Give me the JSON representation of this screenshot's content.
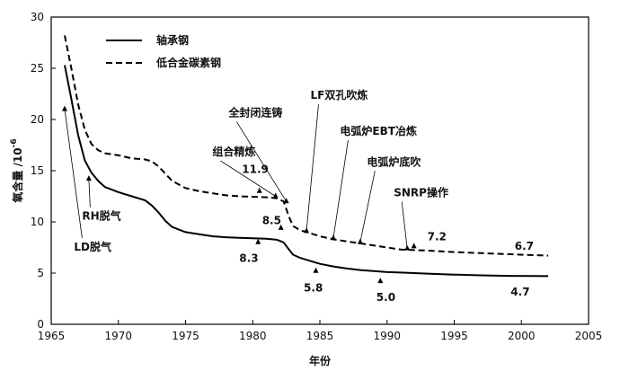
{
  "chart_data": {
    "type": "line",
    "xlabel": "年份",
    "ylabel": "氧含量 /10",
    "ylabel_exponent": "-6",
    "xlim": [
      1965,
      2005
    ],
    "ylim": [
      0,
      30
    ],
    "xticks": [
      "1965",
      "1970",
      "1975",
      "1980",
      "1985",
      "1990",
      "1995",
      "2000",
      "2005"
    ],
    "yticks": [
      "0",
      "5",
      "10",
      "15",
      "20",
      "25",
      "30"
    ],
    "legend_position": "top-left",
    "series": [
      {
        "name": "轴承钢",
        "style": "solid",
        "color": "#000000",
        "points": [
          [
            1966,
            25.3
          ],
          [
            1966.5,
            22
          ],
          [
            1967,
            18.5
          ],
          [
            1967.5,
            16
          ],
          [
            1968,
            14.8
          ],
          [
            1968.5,
            14
          ],
          [
            1969,
            13.4
          ],
          [
            1970,
            12.9
          ],
          [
            1971,
            12.5
          ],
          [
            1972,
            12.1
          ],
          [
            1972.5,
            11.6
          ],
          [
            1973,
            10.9
          ],
          [
            1973.5,
            10.1
          ],
          [
            1974,
            9.5
          ],
          [
            1975,
            9.0
          ],
          [
            1976,
            8.8
          ],
          [
            1977,
            8.6
          ],
          [
            1978,
            8.5
          ],
          [
            1979,
            8.45
          ],
          [
            1980,
            8.4
          ],
          [
            1981,
            8.35
          ],
          [
            1981.8,
            8.25
          ],
          [
            1982.3,
            8.0
          ],
          [
            1982.7,
            7.3
          ],
          [
            1983,
            6.8
          ],
          [
            1983.5,
            6.5
          ],
          [
            1984,
            6.3
          ],
          [
            1985,
            5.9
          ],
          [
            1986,
            5.65
          ],
          [
            1987,
            5.45
          ],
          [
            1988,
            5.3
          ],
          [
            1989,
            5.2
          ],
          [
            1990,
            5.1
          ],
          [
            1991,
            5.05
          ],
          [
            1992,
            5.0
          ],
          [
            1993,
            4.95
          ],
          [
            1995,
            4.85
          ],
          [
            1997,
            4.78
          ],
          [
            1999,
            4.73
          ],
          [
            2001,
            4.71
          ],
          [
            2002,
            4.7
          ]
        ]
      },
      {
        "name": "低合金碳素钢",
        "style": "dashed",
        "color": "#000000",
        "points": [
          [
            1966,
            28.2
          ],
          [
            1966.5,
            25
          ],
          [
            1967,
            21.5
          ],
          [
            1967.5,
            19
          ],
          [
            1968,
            17.6
          ],
          [
            1968.5,
            17
          ],
          [
            1969,
            16.7
          ],
          [
            1970,
            16.5
          ],
          [
            1971,
            16.2
          ],
          [
            1972,
            16.1
          ],
          [
            1972.5,
            15.9
          ],
          [
            1973,
            15.4
          ],
          [
            1973.5,
            14.7
          ],
          [
            1974,
            14.0
          ],
          [
            1975,
            13.3
          ],
          [
            1976,
            13.0
          ],
          [
            1977,
            12.8
          ],
          [
            1978,
            12.6
          ],
          [
            1979,
            12.5
          ],
          [
            1980,
            12.45
          ],
          [
            1981,
            12.4
          ],
          [
            1981.8,
            12.3
          ],
          [
            1982.3,
            12.0
          ],
          [
            1982.7,
            10.5
          ],
          [
            1983,
            9.6
          ],
          [
            1983.5,
            9.2
          ],
          [
            1984,
            9.0
          ],
          [
            1985,
            8.6
          ],
          [
            1986,
            8.3
          ],
          [
            1987,
            8.1
          ],
          [
            1988,
            7.9
          ],
          [
            1989,
            7.7
          ],
          [
            1990,
            7.5
          ],
          [
            1991,
            7.3
          ],
          [
            1992,
            7.25
          ],
          [
            1993,
            7.2
          ],
          [
            1995,
            7.05
          ],
          [
            1997,
            6.95
          ],
          [
            1999,
            6.85
          ],
          [
            2001,
            6.75
          ],
          [
            2002,
            6.7
          ]
        ]
      }
    ],
    "annotations": [
      {
        "text": "LD脱气",
        "x": 1966,
        "y": 21,
        "label_x": 1966.7,
        "label_y": 7.2
      },
      {
        "text": "RH脱气",
        "x": 1967.8,
        "y": 14.2,
        "label_x": 1967.3,
        "label_y": 10.2
      },
      {
        "text": "组合精炼",
        "x": 1981.7,
        "y": 12.5,
        "label_x": 1977,
        "label_y": 16.5
      },
      {
        "text": "全封闭连铸",
        "x": 1982.5,
        "y": 12.0,
        "label_x": 1978.2,
        "label_y": 20.3
      },
      {
        "text": "LF双孔吹炼",
        "x": 1984,
        "y": 9.1,
        "label_x": 1984.3,
        "label_y": 22
      },
      {
        "text": "电弧炉EBT冶炼",
        "x": 1986,
        "y": 8.4,
        "label_x": 1986.5,
        "label_y": 18.5
      },
      {
        "text": "电弧炉底吹",
        "x": 1988,
        "y": 8.0,
        "label_x": 1988.5,
        "label_y": 15.5
      },
      {
        "text": "SNRP操作",
        "x": 1991.5,
        "y": 7.4,
        "label_x": 1990.5,
        "label_y": 12.5
      }
    ],
    "value_labels": [
      {
        "text": "11.9",
        "x": 1979.2,
        "y": 14.8,
        "marker_x": 1980.5,
        "marker_y": 13.0
      },
      {
        "text": "8.5",
        "x": 1980.7,
        "y": 9.8,
        "marker_x": 1982.1,
        "marker_y": 9.4
      },
      {
        "text": "8.3",
        "x": 1979.0,
        "y": 6.1,
        "marker_x": 1980.4,
        "marker_y": 8.0
      },
      {
        "text": "5.8",
        "x": 1983.8,
        "y": 3.2,
        "marker_x": 1984.7,
        "marker_y": 5.2
      },
      {
        "text": "5.0",
        "x": 1989.2,
        "y": 2.3,
        "marker_x": 1989.5,
        "marker_y": 4.2
      },
      {
        "text": "7.2",
        "x": 1993.0,
        "y": 8.2,
        "marker_x": 1992.0,
        "marker_y": 7.6
      },
      {
        "text": "6.7",
        "x": 1999.5,
        "y": 7.3,
        "marker_x": null,
        "marker_y": null
      },
      {
        "text": "4.7",
        "x": 1999.2,
        "y": 2.8,
        "marker_x": null,
        "marker_y": null
      }
    ]
  }
}
